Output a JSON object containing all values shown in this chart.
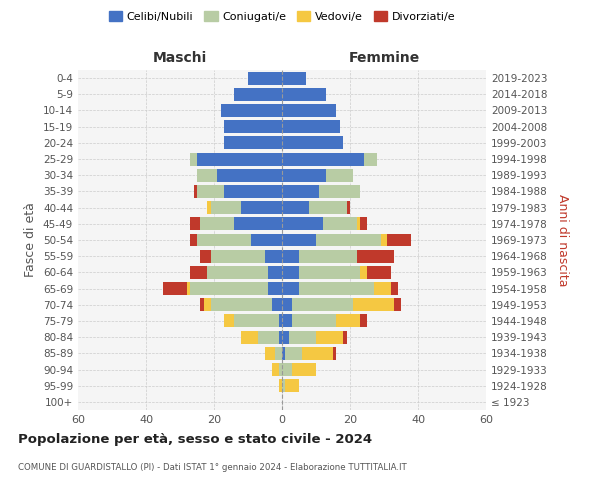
{
  "age_groups": [
    "100+",
    "95-99",
    "90-94",
    "85-89",
    "80-84",
    "75-79",
    "70-74",
    "65-69",
    "60-64",
    "55-59",
    "50-54",
    "45-49",
    "40-44",
    "35-39",
    "30-34",
    "25-29",
    "20-24",
    "15-19",
    "10-14",
    "5-9",
    "0-4"
  ],
  "birth_years": [
    "≤ 1923",
    "1924-1928",
    "1929-1933",
    "1934-1938",
    "1939-1943",
    "1944-1948",
    "1949-1953",
    "1954-1958",
    "1959-1963",
    "1964-1968",
    "1969-1973",
    "1974-1978",
    "1979-1983",
    "1984-1988",
    "1989-1993",
    "1994-1998",
    "1999-2003",
    "2004-2008",
    "2009-2013",
    "2014-2018",
    "2019-2023"
  ],
  "colors": {
    "celibi": "#4472c4",
    "coniugati": "#b8cca4",
    "vedovi": "#f5c842",
    "divorziati": "#c0392b"
  },
  "males": {
    "celibi": [
      0,
      0,
      0,
      0,
      1,
      1,
      3,
      4,
      4,
      5,
      9,
      14,
      12,
      17,
      19,
      25,
      17,
      17,
      18,
      14,
      10
    ],
    "coniugati": [
      0,
      0,
      1,
      2,
      6,
      13,
      18,
      23,
      18,
      16,
      16,
      10,
      9,
      8,
      6,
      2,
      0,
      0,
      0,
      0,
      0
    ],
    "vedovi": [
      0,
      1,
      2,
      3,
      5,
      3,
      2,
      1,
      0,
      0,
      0,
      0,
      1,
      0,
      0,
      0,
      0,
      0,
      0,
      0,
      0
    ],
    "divorziati": [
      0,
      0,
      0,
      0,
      0,
      0,
      1,
      7,
      5,
      3,
      2,
      3,
      0,
      1,
      0,
      0,
      0,
      0,
      0,
      0,
      0
    ]
  },
  "females": {
    "celibi": [
      0,
      0,
      0,
      1,
      2,
      3,
      3,
      5,
      5,
      5,
      10,
      12,
      8,
      11,
      13,
      24,
      18,
      17,
      16,
      13,
      7
    ],
    "coniugati": [
      0,
      1,
      3,
      5,
      8,
      13,
      18,
      22,
      18,
      17,
      19,
      10,
      11,
      12,
      8,
      4,
      0,
      0,
      0,
      0,
      0
    ],
    "vedovi": [
      0,
      4,
      7,
      9,
      8,
      7,
      12,
      5,
      2,
      0,
      2,
      1,
      0,
      0,
      0,
      0,
      0,
      0,
      0,
      0,
      0
    ],
    "divorziati": [
      0,
      0,
      0,
      1,
      1,
      2,
      2,
      2,
      7,
      11,
      7,
      2,
      1,
      0,
      0,
      0,
      0,
      0,
      0,
      0,
      0
    ]
  },
  "xlim": 60,
  "title": "Popolazione per età, sesso e stato civile - 2024",
  "subtitle": "COMUNE DI GUARDISTALLO (PI) - Dati ISTAT 1° gennaio 2024 - Elaborazione TUTTITALIA.IT",
  "xlabel_left": "Maschi",
  "xlabel_right": "Femmine",
  "ylabel_left": "Fasce di età",
  "ylabel_right": "Anni di nascita",
  "bg_color": "#f5f5f5",
  "grid_color": "#cccccc"
}
